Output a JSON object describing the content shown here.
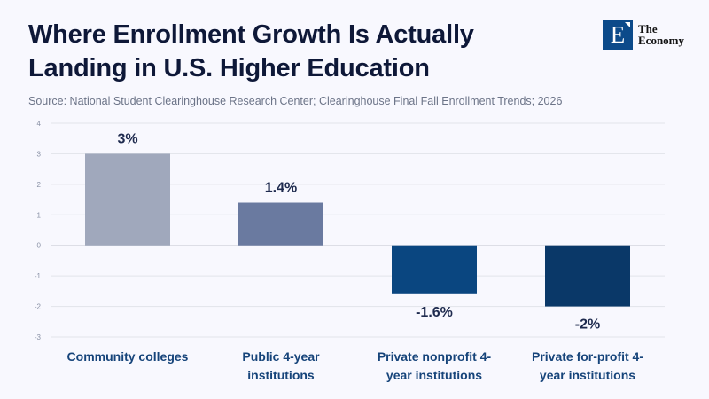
{
  "header": {
    "title_line1": "Where Enrollment Growth Is Actually",
    "title_line2": "Landing in U.S. Higher Education",
    "source": "Source: National Student Clearinghouse Research Center; Clearinghouse Final Fall Enrollment Trends; 2026"
  },
  "logo": {
    "letter": "E",
    "line1": "The",
    "line2": "Economy",
    "color": "#0C4A8A"
  },
  "chart_data": {
    "type": "bar",
    "title": "Where Enrollment Growth Is Actually Landing in U.S. Higher Education",
    "xlabel": "",
    "ylabel": "",
    "categories": [
      [
        "Community colleges"
      ],
      [
        "Public 4-year",
        "institutions"
      ],
      [
        "Private nonprofit 4-",
        "year institutions"
      ],
      [
        "Private for-profit 4-",
        "year institutions"
      ]
    ],
    "values": [
      3,
      1.4,
      -1.6,
      -2
    ],
    "data_labels": [
      "3%",
      "1.4%",
      "-1.6%",
      "-2%"
    ],
    "colors": [
      "#A0A8BC",
      "#6A7AA0",
      "#0A4680",
      "#0A3868"
    ],
    "ylim": [
      -3,
      4
    ],
    "yticks": [
      4,
      3,
      2,
      1,
      0,
      -1,
      -2,
      -3
    ],
    "grid": true,
    "legend": "none"
  }
}
